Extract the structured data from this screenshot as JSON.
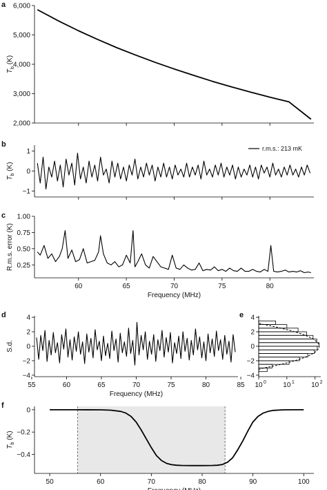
{
  "chart_data": [
    {
      "panel": "a",
      "type": "line",
      "xlim": [
        55.4,
        84.6
      ],
      "ylim": [
        2000,
        6000
      ],
      "yticks": [
        2000,
        3000,
        4000,
        5000,
        6000
      ],
      "ytick_labels": [
        "2,000",
        "3,000",
        "4,000",
        "5,000",
        "6,000"
      ],
      "ylabel": {
        "main": "T",
        "sub": "b",
        "unit": " (K)"
      },
      "series": [
        {
          "x": [
            55.7,
            58,
            60,
            62,
            64,
            66,
            68,
            70,
            72,
            74,
            76,
            78,
            80,
            82,
            84.3
          ],
          "values": [
            5860,
            5460,
            5140,
            4845,
            4565,
            4310,
            4065,
            3840,
            3625,
            3420,
            3230,
            3050,
            2880,
            2720,
            2130
          ]
        }
      ]
    },
    {
      "panel": "b",
      "type": "line",
      "xlim": [
        55.4,
        84.6
      ],
      "ylim": [
        -1.3,
        1.3
      ],
      "yticks": [
        -1,
        0,
        1
      ],
      "ytick_labels": [
        "−1",
        "0",
        "1"
      ],
      "ylabel": {
        "main": "T",
        "sub": "b",
        "unit": " (K)"
      },
      "legend": "r.m.s.: 213 mK",
      "legend_position": "top-right",
      "series": [
        {
          "x": [
            55.7,
            56,
            56.3,
            56.6,
            56.9,
            57.2,
            57.5,
            57.8,
            58.1,
            58.4,
            58.7,
            59,
            59.3,
            59.6,
            59.9,
            60.2,
            60.5,
            60.8,
            61.1,
            61.4,
            61.7,
            62,
            62.3,
            62.6,
            62.9,
            63.2,
            63.5,
            63.8,
            64.1,
            64.4,
            64.7,
            65,
            65.3,
            65.6,
            65.9,
            66.2,
            66.5,
            66.8,
            67.1,
            67.4,
            67.7,
            68,
            68.3,
            68.6,
            68.9,
            69.2,
            69.5,
            69.8,
            70.1,
            70.4,
            70.7,
            71,
            71.3,
            71.6,
            71.9,
            72.2,
            72.5,
            72.8,
            73.1,
            73.4,
            73.7,
            74,
            74.3,
            74.6,
            74.9,
            75.2,
            75.5,
            75.8,
            76.1,
            76.4,
            76.7,
            77,
            77.3,
            77.6,
            77.9,
            78.2,
            78.5,
            78.8,
            79.1,
            79.4,
            79.7,
            80,
            80.3,
            80.6,
            80.9,
            81.2,
            81.5,
            81.8,
            82.1,
            82.4,
            82.7,
            83,
            83.3,
            83.6,
            83.9,
            84.2
          ],
          "values": [
            0.4,
            -0.6,
            0.7,
            -0.9,
            0.2,
            -0.3,
            0.5,
            -0.5,
            0.3,
            -0.8,
            0.6,
            -0.2,
            0.4,
            -0.7,
            0.9,
            -0.4,
            0.2,
            -0.6,
            0.5,
            -0.3,
            0.3,
            -0.5,
            0.7,
            -0.2,
            0.1,
            -0.6,
            0.5,
            -0.3,
            0.4,
            -0.4,
            0.2,
            -0.5,
            0.3,
            -0.2,
            0.6,
            -0.4,
            0.2,
            -0.3,
            0.4,
            -0.2,
            0.3,
            -0.5,
            0.2,
            -0.3,
            0.4,
            -0.3,
            0.2,
            -0.4,
            0.3,
            -0.2,
            0.1,
            -0.3,
            0.4,
            -0.3,
            0.2,
            -0.2,
            0.3,
            -0.4,
            0.5,
            -0.2,
            0.1,
            -0.3,
            0.3,
            -0.2,
            0.4,
            -0.3,
            0.2,
            -0.2,
            0.3,
            -0.4,
            0.2,
            -0.3,
            0.1,
            -0.2,
            0.3,
            -0.3,
            0.2,
            -0.4,
            0.3,
            -0.1,
            0.2,
            -0.3,
            0.4,
            -0.2,
            0.1,
            -0.3,
            0.2,
            -0.2,
            0.3,
            -0.2,
            0.1,
            -0.3,
            0.2,
            -0.2,
            0.3,
            -0.1
          ]
        }
      ]
    },
    {
      "panel": "c",
      "type": "line",
      "xlim": [
        55.4,
        84.6
      ],
      "ylim": [
        0.05,
        1.0
      ],
      "yticks": [
        0.25,
        0.5,
        0.75,
        1.0
      ],
      "ytick_labels": [
        "0.25",
        "0.50",
        "0.75",
        "1.00"
      ],
      "xticks": [
        60,
        65,
        70,
        75,
        80
      ],
      "xtick_labels": [
        "60",
        "65",
        "70",
        "75",
        "80"
      ],
      "xlabel": "Frequency (MHz)",
      "ylabel": "R.m.s. error (K)",
      "series": [
        {
          "x": [
            55.7,
            56,
            56.4,
            56.8,
            57.2,
            57.6,
            58,
            58.3,
            58.6,
            58.9,
            59.3,
            59.7,
            60.1,
            60.5,
            60.9,
            61.3,
            61.7,
            62.1,
            62.3,
            62.6,
            63,
            63.4,
            63.8,
            64.2,
            64.6,
            65,
            65.4,
            65.7,
            65.9,
            66.2,
            66.6,
            67,
            67.4,
            67.8,
            68.2,
            68.6,
            69,
            69.4,
            69.8,
            70.2,
            70.6,
            71,
            71.4,
            71.8,
            72.2,
            72.6,
            73,
            73.4,
            73.8,
            74.2,
            74.6,
            75,
            75.4,
            75.8,
            76.2,
            76.6,
            77,
            77.4,
            77.8,
            78.2,
            78.6,
            79,
            79.4,
            79.8,
            80.1,
            80.4,
            80.8,
            81.2,
            81.6,
            82,
            82.4,
            82.8,
            83.2,
            83.6,
            84,
            84.3
          ],
          "values": [
            0.45,
            0.4,
            0.55,
            0.35,
            0.42,
            0.3,
            0.38,
            0.5,
            0.78,
            0.35,
            0.48,
            0.3,
            0.33,
            0.5,
            0.28,
            0.3,
            0.32,
            0.45,
            0.7,
            0.42,
            0.28,
            0.25,
            0.3,
            0.22,
            0.25,
            0.4,
            0.28,
            0.78,
            0.22,
            0.3,
            0.42,
            0.25,
            0.2,
            0.38,
            0.3,
            0.22,
            0.2,
            0.18,
            0.4,
            0.2,
            0.18,
            0.25,
            0.2,
            0.17,
            0.18,
            0.28,
            0.16,
            0.18,
            0.17,
            0.22,
            0.16,
            0.18,
            0.15,
            0.2,
            0.16,
            0.15,
            0.2,
            0.15,
            0.15,
            0.18,
            0.15,
            0.14,
            0.18,
            0.15,
            0.55,
            0.15,
            0.14,
            0.15,
            0.17,
            0.14,
            0.15,
            0.14,
            0.16,
            0.13,
            0.14,
            0.13
          ]
        }
      ]
    },
    {
      "panel": "d",
      "type": "line",
      "xlim": [
        55.4,
        84.6
      ],
      "ylim": [
        -4.2,
        4.2
      ],
      "yticks": [
        -4,
        -2,
        0,
        2,
        4
      ],
      "ytick_labels": [
        "−4",
        "−2",
        "0",
        "2",
        "4"
      ],
      "xticks": [
        55,
        60,
        65,
        70,
        75,
        80,
        85
      ],
      "xtick_labels": [
        "55",
        "60",
        "65",
        "70",
        "75",
        "80",
        "85"
      ],
      "xlabel": "Frequency (MHz)",
      "ylabel": "S.d.",
      "series": [
        {
          "x": [
            55.7,
            56,
            56.3,
            56.6,
            56.9,
            57.2,
            57.5,
            57.8,
            58.1,
            58.4,
            58.7,
            59,
            59.3,
            59.6,
            59.9,
            60.2,
            60.5,
            60.8,
            61.1,
            61.4,
            61.7,
            62,
            62.3,
            62.6,
            62.9,
            63.2,
            63.5,
            63.8,
            64.1,
            64.4,
            64.7,
            65,
            65.3,
            65.6,
            65.9,
            66.2,
            66.5,
            66.8,
            67.1,
            67.4,
            67.7,
            68,
            68.3,
            68.6,
            68.9,
            69.2,
            69.5,
            69.8,
            70.1,
            70.4,
            70.7,
            71,
            71.3,
            71.6,
            71.9,
            72.2,
            72.5,
            72.8,
            73.1,
            73.4,
            73.7,
            74,
            74.3,
            74.6,
            74.9,
            75.2,
            75.5,
            75.8,
            76.1,
            76.4,
            76.7,
            77,
            77.3,
            77.6,
            77.9,
            78.2,
            78.5,
            78.8,
            79.1,
            79.4,
            79.7,
            80,
            80.3,
            80.6,
            80.9,
            81.2,
            81.5,
            81.8,
            82.1,
            82.4,
            82.7,
            83,
            83.3,
            83.6,
            83.9,
            84.2
          ],
          "values": [
            1.2,
            -1.8,
            1.5,
            -0.6,
            2.2,
            -2.1,
            0.8,
            -1.2,
            1.9,
            -0.9,
            0.5,
            -2.3,
            1.6,
            -0.4,
            2.4,
            -1.5,
            0.9,
            -1.9,
            1.3,
            -0.7,
            2.0,
            -1.1,
            0.6,
            -2.4,
            1.7,
            -0.8,
            1.1,
            -1.6,
            2.3,
            -0.5,
            0.7,
            -2.0,
            1.4,
            -1.3,
            0.4,
            -1.7,
            2.1,
            -0.6,
            1.0,
            -2.2,
            1.8,
            -0.9,
            0.6,
            -1.4,
            2.5,
            -1.0,
            0.8,
            -2.6,
            3.3,
            -1.2,
            1.5,
            -0.5,
            2.0,
            -1.8,
            0.7,
            -1.1,
            1.6,
            -2.1,
            0.9,
            -0.6,
            2.2,
            -1.5,
            1.2,
            -0.8,
            1.9,
            -2.3,
            0.5,
            -1.0,
            1.4,
            -1.7,
            2.0,
            -0.7,
            1.1,
            -1.9,
            0.8,
            -1.2,
            2.4,
            -0.5,
            1.3,
            -1.6,
            0.6,
            -2.0,
            1.7,
            -0.9,
            1.0,
            -1.4,
            2.1,
            -0.6,
            0.9,
            -1.8,
            1.5,
            -1.1,
            0.7,
            -2.2,
            1.6,
            -0.8
          ]
        }
      ]
    },
    {
      "panel": "e",
      "type": "bar",
      "orientation": "horizontal",
      "xscale": "log",
      "xlim": [
        1,
        160
      ],
      "xticks": [
        1,
        10,
        100
      ],
      "xtick_labels": [
        "10",
        "10",
        "10"
      ],
      "xtick_exponents": [
        "0",
        "1",
        "2"
      ],
      "ylim": [
        -4.2,
        4.2
      ],
      "yticks": [
        -4,
        -2,
        0,
        2,
        4
      ],
      "ytick_labels": [
        "−4",
        "−2",
        "0",
        "2",
        "4"
      ],
      "bins": [
        -3.5,
        -3,
        -2.5,
        -2,
        -1.5,
        -1,
        -0.5,
        0,
        0.5,
        1,
        1.5,
        2,
        2.5,
        3
      ],
      "values": [
        2,
        3,
        12,
        28,
        55,
        95,
        120,
        140,
        115,
        85,
        50,
        25,
        10,
        4
      ],
      "fit_curve": "dashed"
    },
    {
      "panel": "f",
      "type": "line",
      "xlim": [
        47,
        102
      ],
      "ylim": [
        -0.57,
        0.03
      ],
      "yticks": [
        -0.4,
        -0.2,
        0
      ],
      "ytick_labels": [
        "−0.4",
        "−0.2",
        "0"
      ],
      "xticks": [
        50,
        60,
        70,
        80,
        90,
        100
      ],
      "xtick_labels": [
        "50",
        "60",
        "70",
        "80",
        "90",
        "100"
      ],
      "xlabel": "Frequency (MHz)",
      "ylabel": {
        "main": "T",
        "sub": "b",
        "unit": " (K)"
      },
      "shaded_region": [
        55.5,
        84.5
      ],
      "series": [
        {
          "x": [
            50,
            55,
            60,
            62,
            64,
            65,
            66,
            67,
            68,
            69,
            70,
            71,
            72,
            73,
            74,
            75,
            76,
            78,
            80,
            82,
            83,
            84,
            85,
            86,
            87,
            88,
            89,
            90,
            91,
            92,
            93,
            94,
            96,
            98,
            100
          ],
          "values": [
            0,
            0,
            -0.001,
            -0.004,
            -0.015,
            -0.03,
            -0.06,
            -0.11,
            -0.18,
            -0.26,
            -0.34,
            -0.41,
            -0.455,
            -0.48,
            -0.492,
            -0.497,
            -0.499,
            -0.5,
            -0.5,
            -0.499,
            -0.497,
            -0.49,
            -0.47,
            -0.43,
            -0.36,
            -0.28,
            -0.19,
            -0.11,
            -0.06,
            -0.03,
            -0.015,
            -0.006,
            -0.001,
            0,
            0
          ]
        }
      ]
    }
  ],
  "panel_labels": [
    "a",
    "b",
    "c",
    "d",
    "e",
    "f"
  ]
}
